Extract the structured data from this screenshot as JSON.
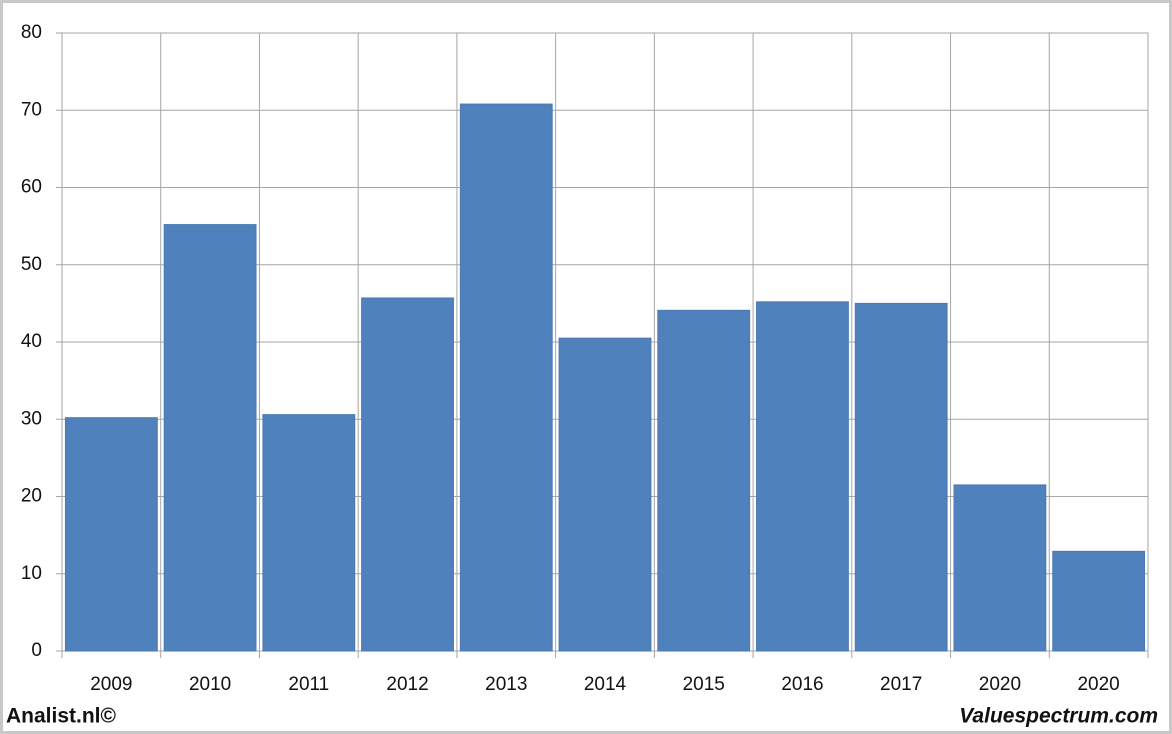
{
  "chart_data": {
    "type": "bar",
    "categories": [
      "2009",
      "2010",
      "2011",
      "2012",
      "2013",
      "2014",
      "2015",
      "2016",
      "2017",
      "2020",
      "2020"
    ],
    "values": [
      30.2,
      55.2,
      30.6,
      45.7,
      70.8,
      40.5,
      44.1,
      45.2,
      45.0,
      21.5,
      12.9
    ],
    "color": "#4f81bd",
    "ylim": [
      0,
      80
    ],
    "yticks": [
      0,
      10,
      20,
      30,
      40,
      50,
      60,
      70,
      80
    ],
    "grid": true,
    "source_left": "Analist.nl©",
    "source_right": "Valuespectrum.com"
  }
}
